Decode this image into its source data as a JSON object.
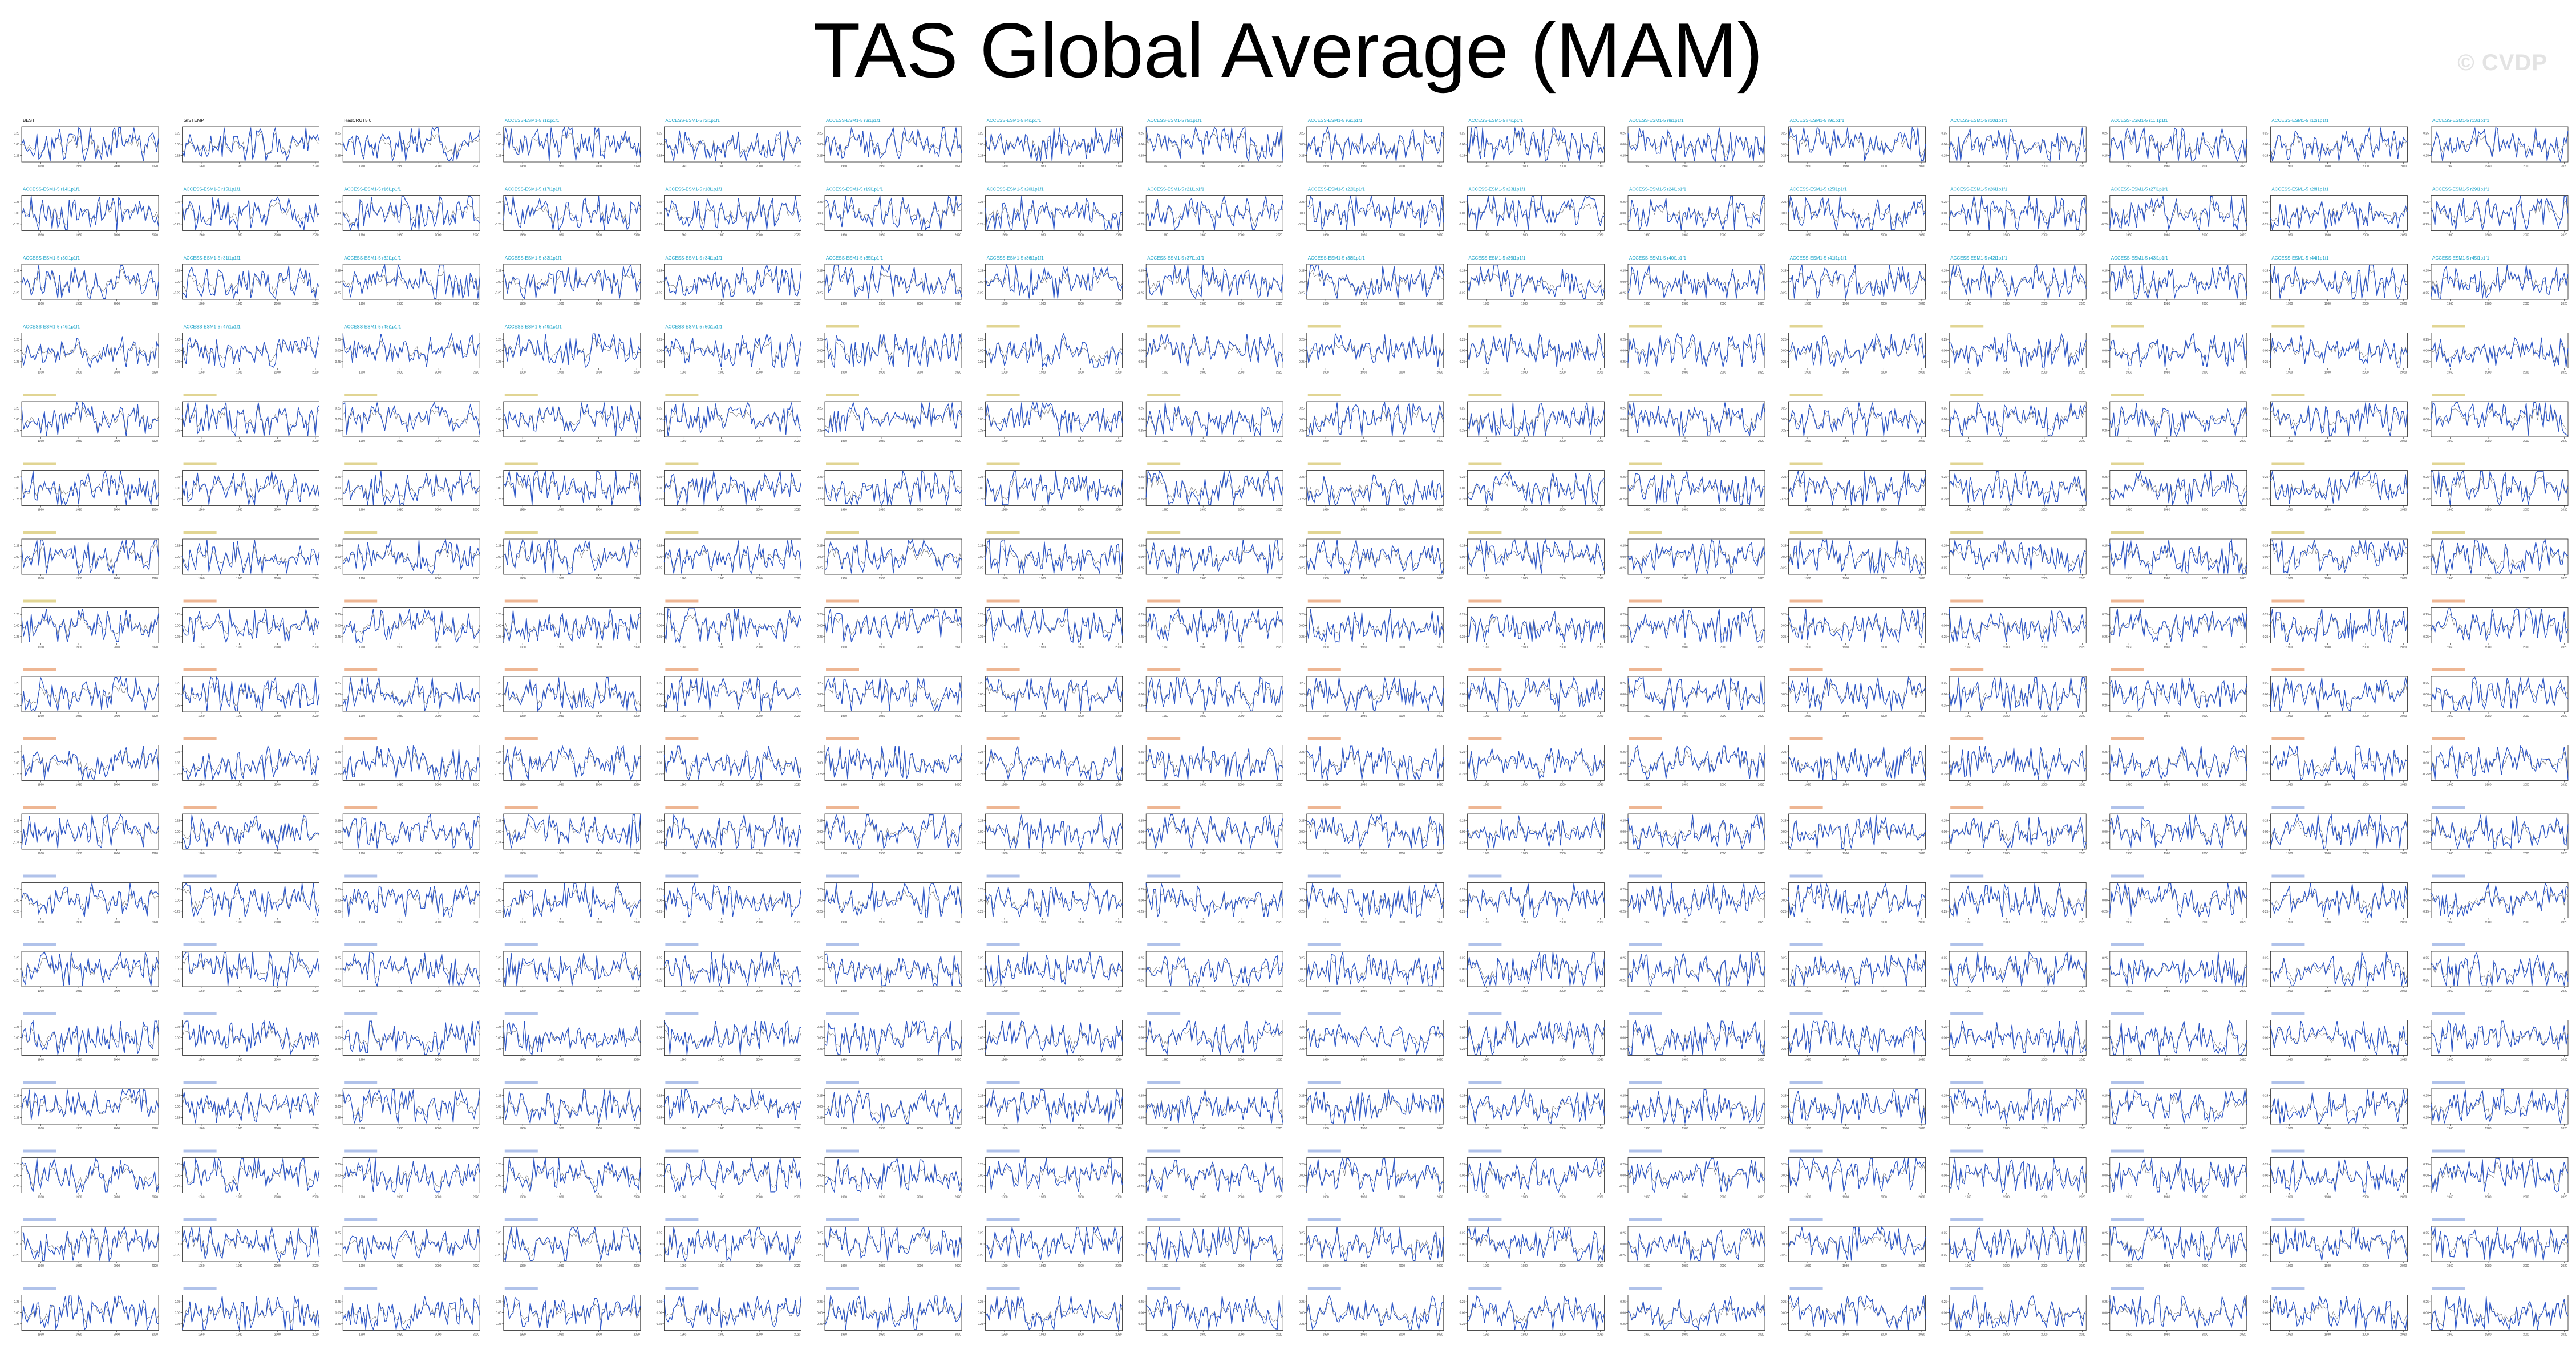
{
  "figure": {
    "title": "TAS Global Average (MAM)",
    "watermark": "© CVDP",
    "n_cols": 16,
    "n_rows": 18,
    "line_color": "#2b55c8",
    "ref_color": "#333333",
    "title_colors": {
      "obs": "#111111",
      "ACCESS-ESM1-5": "#1aa3c8",
      "CanESM5": "#c9b23a",
      "CESM2": "#e07a3a",
      "CESM2-LE": "#6f8fd9"
    }
  },
  "chart_data": {
    "type": "line",
    "title": "TAS Global Average (MAM)",
    "x_ticks": [
      1960,
      1980,
      2000,
      2020
    ],
    "xlim": [
      1950,
      2022
    ],
    "y_ticks": [
      0.25,
      0.0,
      -0.25
    ],
    "ylim": [
      -0.4,
      0.4
    ],
    "panels": [
      {
        "name": "BEST",
        "group": "obs"
      },
      {
        "name": "GISTEMP",
        "group": "obs"
      },
      {
        "name": "HadCRUT5.0",
        "group": "obs"
      },
      {
        "name": "ACCESS-ESM1-5 r1i1p1f1",
        "group": "ACCESS-ESM1-5"
      },
      {
        "name": "ACCESS-ESM1-5 r2i1p1f1",
        "group": "ACCESS-ESM1-5"
      },
      {
        "name": "ACCESS-ESM1-5 r3i1p1f1",
        "group": "ACCESS-ESM1-5"
      },
      {
        "name": "ACCESS-ESM1-5 r4i1p1f1",
        "group": "ACCESS-ESM1-5"
      },
      {
        "name": "ACCESS-ESM1-5 r5i1p1f1",
        "group": "ACCESS-ESM1-5"
      },
      {
        "name": "ACCESS-ESM1-5 r6i1p1f1",
        "group": "ACCESS-ESM1-5"
      },
      {
        "name": "ACCESS-ESM1-5 r7i1p1f1",
        "group": "ACCESS-ESM1-5"
      },
      {
        "name": "ACCESS-ESM1-5 r8i1p1f1",
        "group": "ACCESS-ESM1-5"
      },
      {
        "name": "ACCESS-ESM1-5 r9i1p1f1",
        "group": "ACCESS-ESM1-5"
      },
      {
        "name": "ACCESS-ESM1-5 r10i1p1f1",
        "group": "ACCESS-ESM1-5"
      },
      {
        "name": "ACCESS-ESM1-5 r11i1p1f1",
        "group": "ACCESS-ESM1-5"
      },
      {
        "name": "ACCESS-ESM1-5 r12i1p1f1",
        "group": "ACCESS-ESM1-5"
      },
      {
        "name": "ACCESS-ESM1-5 r13i1p1f1",
        "group": "ACCESS-ESM1-5"
      },
      {
        "name": "ACCESS-ESM1-5 r14i1p1f1",
        "group": "ACCESS-ESM1-5"
      },
      {
        "name": "ACCESS-ESM1-5 r15i1p1f1",
        "group": "ACCESS-ESM1-5"
      },
      {
        "name": "ACCESS-ESM1-5 r16i1p1f1",
        "group": "ACCESS-ESM1-5"
      },
      {
        "name": "ACCESS-ESM1-5 r17i1p1f1",
        "group": "ACCESS-ESM1-5"
      },
      {
        "name": "ACCESS-ESM1-5 r18i1p1f1",
        "group": "ACCESS-ESM1-5"
      },
      {
        "name": "ACCESS-ESM1-5 r19i1p1f1",
        "group": "ACCESS-ESM1-5"
      },
      {
        "name": "ACCESS-ESM1-5 r20i1p1f1",
        "group": "ACCESS-ESM1-5"
      },
      {
        "name": "ACCESS-ESM1-5 r21i1p1f1",
        "group": "ACCESS-ESM1-5"
      },
      {
        "name": "ACCESS-ESM1-5 r22i1p1f1",
        "group": "ACCESS-ESM1-5"
      },
      {
        "name": "ACCESS-ESM1-5 r23i1p1f1",
        "group": "ACCESS-ESM1-5"
      },
      {
        "name": "ACCESS-ESM1-5 r24i1p1f1",
        "group": "ACCESS-ESM1-5"
      },
      {
        "name": "ACCESS-ESM1-5 r25i1p1f1",
        "group": "ACCESS-ESM1-5"
      },
      {
        "name": "ACCESS-ESM1-5 r26i1p1f1",
        "group": "ACCESS-ESM1-5"
      },
      {
        "name": "ACCESS-ESM1-5 r27i1p1f1",
        "group": "ACCESS-ESM1-5"
      },
      {
        "name": "ACCESS-ESM1-5 r28i1p1f1",
        "group": "ACCESS-ESM1-5"
      },
      {
        "name": "ACCESS-ESM1-5 r29i1p1f1",
        "group": "ACCESS-ESM1-5"
      },
      {
        "name": "ACCESS-ESM1-5 r30i1p1f1",
        "group": "ACCESS-ESM1-5"
      },
      {
        "name": "ACCESS-ESM1-5 r31i1p1f1",
        "group": "ACCESS-ESM1-5"
      },
      {
        "name": "ACCESS-ESM1-5 r32i1p1f1",
        "group": "ACCESS-ESM1-5"
      },
      {
        "name": "ACCESS-ESM1-5 r33i1p1f1",
        "group": "ACCESS-ESM1-5"
      },
      {
        "name": "ACCESS-ESM1-5 r34i1p1f1",
        "group": "ACCESS-ESM1-5"
      },
      {
        "name": "ACCESS-ESM1-5 r35i1p1f1",
        "group": "ACCESS-ESM1-5"
      },
      {
        "name": "ACCESS-ESM1-5 r36i1p1f1",
        "group": "ACCESS-ESM1-5"
      },
      {
        "name": "ACCESS-ESM1-5 r37i1p1f1",
        "group": "ACCESS-ESM1-5"
      },
      {
        "name": "ACCESS-ESM1-5 r38i1p1f1",
        "group": "ACCESS-ESM1-5"
      },
      {
        "name": "ACCESS-ESM1-5 r39i1p1f1",
        "group": "ACCESS-ESM1-5"
      },
      {
        "name": "ACCESS-ESM1-5 r40i1p1f1",
        "group": "ACCESS-ESM1-5"
      },
      {
        "name": "ACCESS-ESM1-5 r41i1p1f1",
        "group": "ACCESS-ESM1-5"
      },
      {
        "name": "ACCESS-ESM1-5 r42i1p1f1",
        "group": "ACCESS-ESM1-5"
      },
      {
        "name": "ACCESS-ESM1-5 r43i1p1f1",
        "group": "ACCESS-ESM1-5"
      },
      {
        "name": "ACCESS-ESM1-5 r44i1p1f1",
        "group": "ACCESS-ESM1-5"
      },
      {
        "name": "ACCESS-ESM1-5 r45i1p1f1",
        "group": "ACCESS-ESM1-5"
      },
      {
        "name": "ACCESS-ESM1-5 r46i1p1f1",
        "group": "ACCESS-ESM1-5"
      },
      {
        "name": "ACCESS-ESM1-5 r47i1p1f1",
        "group": "ACCESS-ESM1-5"
      },
      {
        "name": "ACCESS-ESM1-5 r48i1p1f1",
        "group": "ACCESS-ESM1-5"
      },
      {
        "name": "ACCESS-ESM1-5 r49i1p1f1",
        "group": "ACCESS-ESM1-5"
      },
      {
        "name": "ACCESS-ESM1-5 r50i1p1f1",
        "group": "ACCESS-ESM1-5"
      }
    ]
  }
}
